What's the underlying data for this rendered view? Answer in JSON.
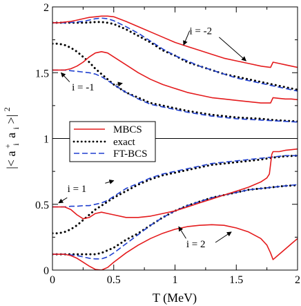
{
  "chart_data": {
    "type": "line",
    "xlabel": "T (MeV)",
    "ylabel_parts": {
      "open": "|<",
      "a": "a",
      "plus": "+",
      "i1": "i",
      "a2": "a",
      "i2": "i",
      "close": ">|",
      "exp": "2"
    },
    "xlim": [
      0,
      2
    ],
    "ylim": [
      0,
      2
    ],
    "x_ticks": [
      0,
      0.5,
      1,
      1.5,
      2
    ],
    "x_tick_labels": [
      "0",
      "0.5",
      "1",
      "1.5",
      "2"
    ],
    "y_ticks": [
      0,
      0.5,
      1,
      1.5,
      2
    ],
    "y_tick_labels": [
      "0",
      "0.5",
      "1",
      "1.5",
      "2"
    ],
    "hline": 1.0,
    "legend": {
      "placement": "center-left",
      "entries": [
        {
          "label": "MBCS",
          "color": "#e41a1c",
          "dash": "solid"
        },
        {
          "label": "exact",
          "color": "#000000",
          "dash": "dotted"
        },
        {
          "label": "FT-BCS",
          "color": "#1f3fcf",
          "dash": "dashed"
        }
      ]
    },
    "annotations": [
      {
        "text": "i = -2",
        "x": 1.21,
        "y": 1.82,
        "arrows": [
          [
            1.12,
            1.82,
            1.07,
            1.71
          ],
          [
            1.36,
            1.77,
            1.58,
            1.59
          ]
        ]
      },
      {
        "text": "i = -1",
        "x": 0.25,
        "y": 1.39,
        "arrows": [
          [
            0.14,
            1.43,
            0.07,
            1.5
          ],
          [
            0.52,
            1.41,
            0.57,
            1.42
          ]
        ]
      },
      {
        "text": "i = 1",
        "x": 0.2,
        "y": 0.62,
        "arrows": [
          [
            0.12,
            0.55,
            0.05,
            0.51
          ],
          [
            0.43,
            0.66,
            0.5,
            0.68
          ]
        ]
      },
      {
        "text": "i = 2",
        "x": 1.17,
        "y": 0.2,
        "arrows": [
          [
            1.09,
            0.24,
            1.03,
            0.33
          ],
          [
            1.33,
            0.21,
            1.46,
            0.29
          ]
        ]
      }
    ],
    "series": [
      {
        "group": "i=-2",
        "style": "MBCS",
        "x": [
          0,
          0.05,
          0.1,
          0.15,
          0.2,
          0.25,
          0.3,
          0.35,
          0.4,
          0.45,
          0.5,
          0.6,
          0.7,
          0.8,
          0.9,
          1.0,
          1.1,
          1.2,
          1.3,
          1.4,
          1.5,
          1.6,
          1.7,
          1.78,
          1.8,
          1.85,
          1.9,
          1.95,
          2.0
        ],
        "values": [
          1.88,
          1.88,
          1.885,
          1.89,
          1.9,
          1.91,
          1.92,
          1.925,
          1.93,
          1.93,
          1.925,
          1.89,
          1.85,
          1.81,
          1.77,
          1.73,
          1.7,
          1.67,
          1.64,
          1.61,
          1.59,
          1.57,
          1.55,
          1.54,
          1.58,
          1.57,
          1.56,
          1.55,
          1.54
        ]
      },
      {
        "group": "i=-2",
        "style": "FT-BCS",
        "x": [
          0,
          0.05,
          0.1,
          0.15,
          0.2,
          0.25,
          0.3,
          0.35,
          0.4,
          0.45,
          0.5,
          0.6,
          0.7,
          0.8,
          0.9,
          1.0,
          1.1,
          1.2,
          1.3,
          1.4,
          1.5,
          1.6,
          1.7,
          1.8,
          1.9,
          2.0
        ],
        "values": [
          1.88,
          1.88,
          1.88,
          1.882,
          1.885,
          1.89,
          1.9,
          1.91,
          1.915,
          1.91,
          1.895,
          1.85,
          1.8,
          1.74,
          1.68,
          1.63,
          1.59,
          1.55,
          1.52,
          1.49,
          1.46,
          1.44,
          1.42,
          1.4,
          1.38,
          1.36
        ]
      },
      {
        "group": "i=-2",
        "style": "exact",
        "x": [
          0,
          0.05,
          0.1,
          0.15,
          0.2,
          0.25,
          0.3,
          0.35,
          0.4,
          0.45,
          0.5,
          0.6,
          0.7,
          0.8,
          0.9,
          1.0,
          1.1,
          1.2,
          1.3,
          1.4,
          1.5,
          1.6,
          1.7,
          1.8,
          1.9,
          2.0
        ],
        "values": [
          1.88,
          1.88,
          1.88,
          1.88,
          1.88,
          1.88,
          1.882,
          1.885,
          1.885,
          1.88,
          1.87,
          1.83,
          1.78,
          1.73,
          1.67,
          1.63,
          1.58,
          1.55,
          1.52,
          1.49,
          1.47,
          1.45,
          1.43,
          1.41,
          1.39,
          1.37
        ]
      },
      {
        "group": "i=-1",
        "style": "MBCS",
        "x": [
          0,
          0.05,
          0.1,
          0.15,
          0.2,
          0.25,
          0.3,
          0.35,
          0.4,
          0.45,
          0.5,
          0.6,
          0.7,
          0.8,
          0.9,
          1.0,
          1.1,
          1.2,
          1.3,
          1.4,
          1.5,
          1.6,
          1.7,
          1.78,
          1.8,
          1.85,
          1.9,
          1.95,
          2.0
        ],
        "values": [
          1.52,
          1.52,
          1.52,
          1.53,
          1.55,
          1.58,
          1.62,
          1.65,
          1.66,
          1.65,
          1.62,
          1.56,
          1.5,
          1.45,
          1.41,
          1.38,
          1.35,
          1.33,
          1.31,
          1.3,
          1.29,
          1.28,
          1.27,
          1.27,
          1.31,
          1.305,
          1.3,
          1.3,
          1.295
        ]
      },
      {
        "group": "i=-1",
        "style": "FT-BCS",
        "x": [
          0,
          0.05,
          0.1,
          0.15,
          0.2,
          0.25,
          0.3,
          0.35,
          0.4,
          0.45,
          0.5,
          0.6,
          0.7,
          0.8,
          0.9,
          1.0,
          1.1,
          1.2,
          1.3,
          1.4,
          1.5,
          1.6,
          1.7,
          1.8,
          1.9,
          2.0
        ],
        "values": [
          1.52,
          1.52,
          1.52,
          1.515,
          1.51,
          1.505,
          1.5,
          1.49,
          1.47,
          1.44,
          1.41,
          1.35,
          1.3,
          1.26,
          1.24,
          1.22,
          1.2,
          1.185,
          1.17,
          1.16,
          1.15,
          1.145,
          1.14,
          1.135,
          1.13,
          1.125
        ]
      },
      {
        "group": "i=-1",
        "style": "exact",
        "x": [
          0,
          0.05,
          0.1,
          0.15,
          0.2,
          0.25,
          0.3,
          0.35,
          0.4,
          0.45,
          0.5,
          0.6,
          0.7,
          0.8,
          0.9,
          1.0,
          1.1,
          1.2,
          1.3,
          1.4,
          1.5,
          1.6,
          1.7,
          1.8,
          1.9,
          2.0
        ],
        "values": [
          1.72,
          1.72,
          1.71,
          1.69,
          1.66,
          1.62,
          1.58,
          1.53,
          1.49,
          1.45,
          1.41,
          1.35,
          1.31,
          1.27,
          1.25,
          1.23,
          1.21,
          1.195,
          1.18,
          1.17,
          1.16,
          1.155,
          1.15,
          1.14,
          1.135,
          1.13
        ]
      },
      {
        "group": "i=1",
        "style": "MBCS",
        "x": [
          0,
          0.05,
          0.1,
          0.15,
          0.2,
          0.25,
          0.3,
          0.35,
          0.4,
          0.45,
          0.5,
          0.6,
          0.7,
          0.8,
          0.9,
          1.0,
          1.1,
          1.2,
          1.3,
          1.4,
          1.5,
          1.6,
          1.7,
          1.75,
          1.77,
          1.79,
          1.8,
          1.85,
          1.9,
          1.95,
          2.0
        ],
        "values": [
          0.48,
          0.48,
          0.48,
          0.46,
          0.42,
          0.39,
          0.4,
          0.43,
          0.44,
          0.43,
          0.42,
          0.4,
          0.4,
          0.41,
          0.43,
          0.45,
          0.48,
          0.51,
          0.54,
          0.57,
          0.6,
          0.63,
          0.67,
          0.7,
          0.73,
          0.88,
          0.9,
          0.9,
          0.91,
          0.915,
          0.92
        ]
      },
      {
        "group": "i=1",
        "style": "FT-BCS",
        "x": [
          0,
          0.05,
          0.1,
          0.15,
          0.2,
          0.25,
          0.3,
          0.35,
          0.4,
          0.45,
          0.5,
          0.6,
          0.7,
          0.8,
          0.9,
          1.0,
          1.1,
          1.2,
          1.3,
          1.4,
          1.5,
          1.6,
          1.7,
          1.8,
          1.9,
          2.0
        ],
        "values": [
          0.48,
          0.48,
          0.48,
          0.485,
          0.485,
          0.49,
          0.49,
          0.5,
          0.51,
          0.53,
          0.56,
          0.62,
          0.66,
          0.7,
          0.73,
          0.75,
          0.77,
          0.79,
          0.81,
          0.82,
          0.83,
          0.84,
          0.85,
          0.86,
          0.87,
          0.87
        ]
      },
      {
        "group": "i=1",
        "style": "exact",
        "x": [
          0,
          0.05,
          0.1,
          0.15,
          0.2,
          0.25,
          0.3,
          0.35,
          0.4,
          0.45,
          0.5,
          0.6,
          0.7,
          0.8,
          0.9,
          1.0,
          1.1,
          1.2,
          1.3,
          1.4,
          1.5,
          1.6,
          1.7,
          1.8,
          1.9,
          2.0
        ],
        "values": [
          0.28,
          0.28,
          0.29,
          0.31,
          0.34,
          0.38,
          0.42,
          0.46,
          0.49,
          0.52,
          0.55,
          0.6,
          0.65,
          0.69,
          0.72,
          0.74,
          0.76,
          0.78,
          0.8,
          0.81,
          0.82,
          0.83,
          0.84,
          0.855,
          0.865,
          0.87
        ]
      },
      {
        "group": "i=2",
        "style": "MBCS",
        "x": [
          0,
          0.05,
          0.1,
          0.15,
          0.2,
          0.25,
          0.3,
          0.35,
          0.4,
          0.45,
          0.5,
          0.6,
          0.7,
          0.8,
          0.9,
          1.0,
          1.1,
          1.2,
          1.3,
          1.4,
          1.5,
          1.6,
          1.7,
          1.75,
          1.78,
          1.8,
          1.85,
          1.9,
          1.95,
          2.0
        ],
        "values": [
          0.12,
          0.12,
          0.12,
          0.11,
          0.09,
          0.06,
          0.03,
          0.005,
          0.0,
          0.02,
          0.06,
          0.13,
          0.19,
          0.24,
          0.28,
          0.31,
          0.33,
          0.34,
          0.345,
          0.34,
          0.32,
          0.29,
          0.24,
          0.19,
          0.13,
          0.08,
          0.12,
          0.16,
          0.2,
          0.24
        ]
      },
      {
        "group": "i=2",
        "style": "FT-BCS",
        "x": [
          0,
          0.05,
          0.1,
          0.15,
          0.2,
          0.25,
          0.3,
          0.35,
          0.4,
          0.45,
          0.5,
          0.6,
          0.7,
          0.8,
          0.9,
          1.0,
          1.1,
          1.2,
          1.3,
          1.4,
          1.5,
          1.6,
          1.7,
          1.8,
          1.9,
          2.0
        ],
        "values": [
          0.12,
          0.12,
          0.12,
          0.115,
          0.11,
          0.1,
          0.09,
          0.085,
          0.085,
          0.1,
          0.13,
          0.2,
          0.27,
          0.34,
          0.4,
          0.45,
          0.49,
          0.52,
          0.55,
          0.57,
          0.59,
          0.61,
          0.62,
          0.63,
          0.64,
          0.65
        ]
      },
      {
        "group": "i=2",
        "style": "exact",
        "x": [
          0,
          0.05,
          0.1,
          0.15,
          0.2,
          0.25,
          0.3,
          0.35,
          0.4,
          0.45,
          0.5,
          0.6,
          0.7,
          0.8,
          0.9,
          1.0,
          1.1,
          1.2,
          1.3,
          1.4,
          1.5,
          1.6,
          1.7,
          1.8,
          1.9,
          2.0
        ],
        "values": [
          0.12,
          0.12,
          0.12,
          0.12,
          0.12,
          0.12,
          0.12,
          0.12,
          0.13,
          0.15,
          0.17,
          0.23,
          0.28,
          0.34,
          0.4,
          0.45,
          0.49,
          0.52,
          0.55,
          0.57,
          0.59,
          0.61,
          0.62,
          0.63,
          0.64,
          0.645
        ]
      }
    ]
  }
}
